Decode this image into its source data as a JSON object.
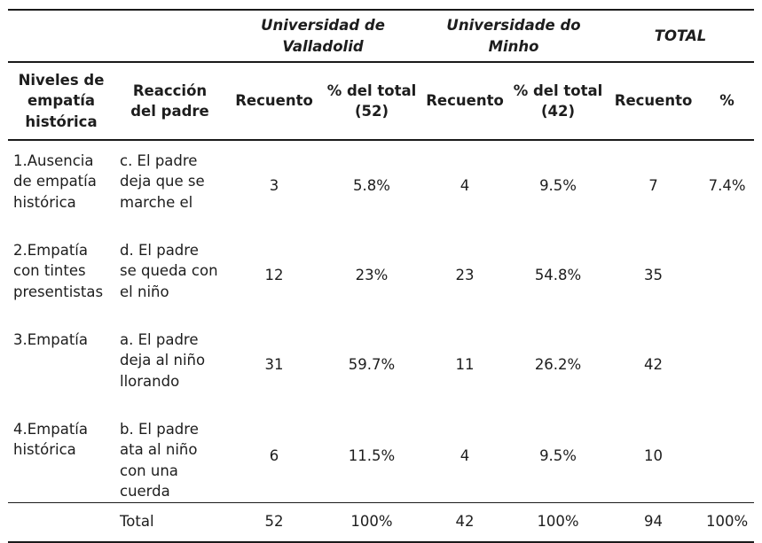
{
  "page": {
    "background": "#ffffff",
    "text_color": "#1d1d1d",
    "rule_color": "#1a1a1a"
  },
  "table": {
    "group_headers": {
      "valladolid": "Universidad de Valladolid",
      "minho": "Universidade do Minho",
      "total": "TOTAL"
    },
    "column_headers": [
      "Niveles de empatía histórica",
      "Reacción del padre",
      "Recuento",
      "% del total (52)",
      "Recuento",
      "% del total (42)",
      "Recuento",
      "%"
    ],
    "rows": [
      [
        "1.Ausencia de empatía histórica",
        "c. El padre deja que se marche el",
        "3",
        "5.8%",
        "4",
        "9.5%",
        "7",
        "7.4%"
      ],
      [
        "2.Empatía con tintes presentistas",
        "d. El padre se queda con el niño",
        "12",
        "23%",
        "23",
        "54.8%",
        "35",
        ""
      ],
      [
        "3.Empatía",
        "a. El padre deja al niño llorando",
        "31",
        "59.7%",
        "11",
        "26.2%",
        "42",
        ""
      ],
      [
        "4.Empatía histórica",
        "b. El padre ata al niño con una cuerda",
        "6",
        "11.5%",
        "4",
        "9.5%",
        "10",
        ""
      ]
    ],
    "total_row": [
      "",
      "Total",
      "52",
      "100%",
      "42",
      "100%",
      "94",
      "100%"
    ]
  }
}
